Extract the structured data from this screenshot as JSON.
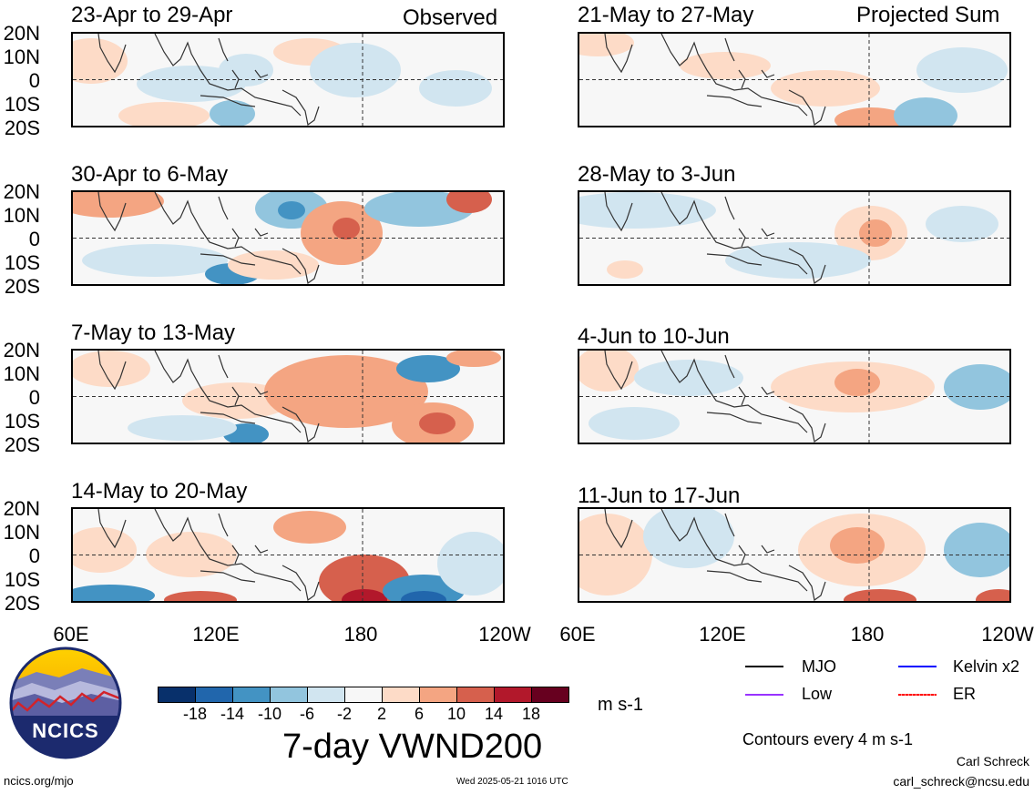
{
  "headers": {
    "left": "Observed",
    "right": "Projected Sum"
  },
  "observed_panels": [
    {
      "title": "23-Apr to 29-Apr"
    },
    {
      "title": "30-Apr to 6-May"
    },
    {
      "title": "7-May to 13-May"
    },
    {
      "title": "14-May to 20-May"
    }
  ],
  "projected_panels": [
    {
      "title": "21-May to 27-May"
    },
    {
      "title": "28-May to 3-Jun"
    },
    {
      "title": "4-Jun to 10-Jun"
    },
    {
      "title": "11-Jun to 17-Jun"
    }
  ],
  "lat_labels": [
    "20N",
    "10N",
    "0",
    "10S",
    "20S"
  ],
  "lon_labels": [
    "60E",
    "120E",
    "180",
    "120W"
  ],
  "colorbar": {
    "colors": [
      "#08306b",
      "#2166ac",
      "#4393c3",
      "#92c5de",
      "#d1e5f0",
      "#f7f7f7",
      "#fddbc7",
      "#f4a582",
      "#d6604d",
      "#b2182b",
      "#67001f"
    ],
    "labels": [
      "-18",
      "-14",
      "-10",
      "-6",
      "-2",
      "2",
      "6",
      "10",
      "14",
      "18"
    ],
    "units": "m s-1"
  },
  "main_title": "7-day VWND200",
  "legend": {
    "mjo": "MJO",
    "kelvin": "Kelvin x2",
    "low": "Low",
    "er": "ER",
    "colors": {
      "mjo": "#000000",
      "kelvin": "#0000ff",
      "low": "#9933ff",
      "er": "#ff0000"
    }
  },
  "contour_note": "Contours every 4 m s-1",
  "credit": {
    "name": "Carl Schreck",
    "email": "carl_schreck@ncsu.edu"
  },
  "footer": {
    "url": "ncics.org/mjo",
    "timestamp": "Wed 2025-05-21 1016 UTC"
  },
  "logo": {
    "text": "NCICS"
  }
}
